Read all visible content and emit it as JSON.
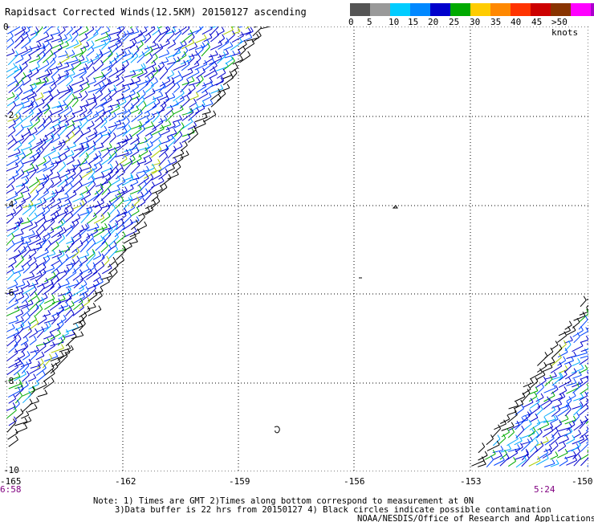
{
  "title": "Rapidsact Corrected Winds(12.5KM) 20150127 ascending",
  "legend": {
    "colors": [
      "#555555",
      "#999999",
      "#00ccff",
      "#0088ff",
      "#0000cc",
      "#00aa00",
      "#ffcc00",
      "#ff8800",
      "#ff3300",
      "#cc0000",
      "#883300",
      "#ff00ff",
      "#aa00cc",
      "#6600aa"
    ],
    "labels": [
      "0",
      "5",
      "10",
      "15",
      "20",
      "25",
      "30",
      "35",
      "40",
      "45",
      ">50 knots"
    ]
  },
  "lat_labels": [
    "0",
    "-2",
    "-4",
    "-6",
    "-8",
    "-10"
  ],
  "lon_labels": [
    "-165",
    "-162",
    "-159",
    "-156",
    "-153",
    "-150"
  ],
  "times": {
    "left": "6:58",
    "right": "5:24"
  },
  "notes": {
    "line1": "Note: 1) Times are GMT 2)Times along bottom correspond to measurement at 0N",
    "line2": "3)Data buffer is 22 hrs from 20150127 4) Black circles indicate possible contamination",
    "credit": "NOAA/NESDIS/Office of Research and Applications"
  }
}
